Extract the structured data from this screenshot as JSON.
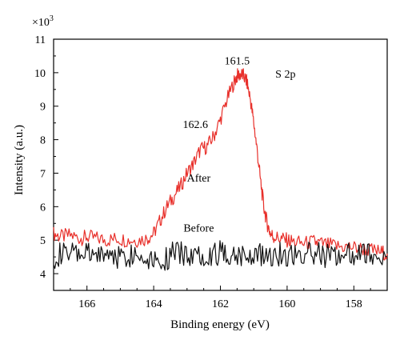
{
  "chart_data": {
    "type": "line",
    "title": "",
    "xlabel": "Binding energy (eV)",
    "ylabel": "Intensity (a.u.)",
    "y_multiplier_label": "×10",
    "y_multiplier_exp": "3",
    "xlim": [
      167,
      157
    ],
    "ylim": [
      3.5,
      11
    ],
    "x_ticks": [
      166,
      164,
      162,
      160,
      158
    ],
    "y_ticks": [
      4,
      5,
      6,
      7,
      8,
      9,
      10,
      11
    ],
    "x_reversed": true,
    "grid": false,
    "colors": {
      "after": "#e8302b",
      "before": "#111111",
      "axis": "#000000"
    },
    "series": [
      {
        "name": "After",
        "x": [
          167.0,
          166.8,
          166.5,
          166.2,
          166.0,
          165.7,
          165.4,
          165.1,
          164.8,
          164.5,
          164.2,
          164.0,
          163.8,
          163.6,
          163.4,
          163.2,
          163.0,
          162.8,
          162.6,
          162.4,
          162.2,
          162.0,
          161.8,
          161.6,
          161.5,
          161.4,
          161.3,
          161.2,
          161.1,
          161.0,
          160.9,
          160.8,
          160.7,
          160.6,
          160.5,
          160.4,
          160.2,
          160.0,
          159.8,
          159.5,
          159.2,
          159.0,
          158.7,
          158.4,
          158.1,
          157.8,
          157.5,
          157.2,
          157.0
        ],
        "values": [
          5.2,
          5.1,
          5.15,
          5.05,
          5.1,
          5.05,
          5.0,
          5.05,
          5.0,
          5.0,
          5.05,
          5.2,
          5.6,
          6.0,
          6.3,
          6.6,
          7.0,
          7.3,
          7.7,
          7.8,
          8.1,
          8.6,
          9.2,
          9.7,
          9.9,
          9.95,
          9.9,
          9.7,
          9.2,
          8.5,
          7.7,
          6.8,
          6.0,
          5.5,
          5.2,
          5.1,
          5.05,
          5.0,
          4.95,
          4.9,
          4.95,
          4.9,
          4.85,
          4.8,
          4.8,
          4.75,
          4.7,
          4.65,
          4.6
        ]
      },
      {
        "name": "Before",
        "x": [
          167.0,
          166.7,
          166.4,
          166.1,
          165.8,
          165.5,
          165.2,
          164.9,
          164.6,
          164.3,
          164.0,
          163.7,
          163.4,
          163.1,
          162.8,
          162.5,
          162.2,
          161.9,
          161.6,
          161.3,
          161.0,
          160.7,
          160.4,
          160.1,
          159.8,
          159.5,
          159.2,
          158.9,
          158.6,
          158.3,
          158.0,
          157.7,
          157.4,
          157.0
        ],
        "values": [
          4.5,
          4.6,
          4.55,
          4.6,
          4.5,
          4.6,
          4.55,
          4.5,
          4.6,
          4.5,
          4.5,
          4.4,
          4.6,
          4.6,
          4.55,
          4.6,
          4.6,
          4.65,
          4.6,
          4.55,
          4.6,
          4.55,
          4.6,
          4.55,
          4.6,
          4.55,
          4.6,
          4.55,
          4.55,
          4.6,
          4.6,
          4.55,
          4.6,
          4.5
        ]
      }
    ],
    "annotations": [
      {
        "text": "161.5",
        "x": 161.5,
        "y": 10.25
      },
      {
        "text": "162.6",
        "x": 162.75,
        "y": 8.35
      },
      {
        "text": "S 2p",
        "x": 160.05,
        "y": 9.85
      },
      {
        "text": "After",
        "x": 162.65,
        "y": 6.75
      },
      {
        "text": "Before",
        "x": 162.65,
        "y": 5.25
      }
    ]
  }
}
